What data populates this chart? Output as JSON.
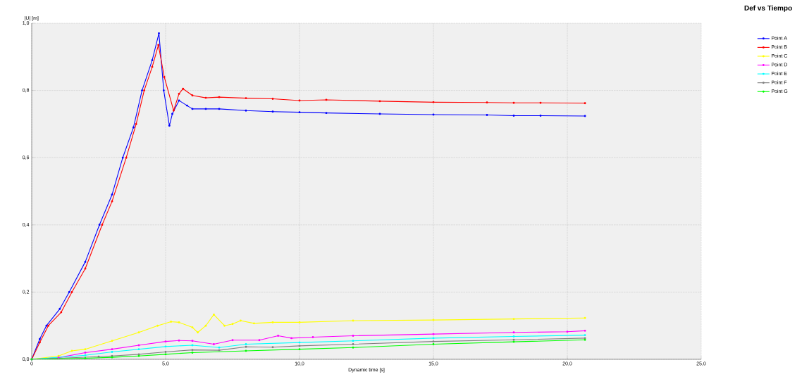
{
  "chart_data": {
    "type": "line",
    "legend_title": "Def vs Tiempo",
    "xlabel": "Dynamic time [s]",
    "ylabel": "|U| [m]",
    "xlim": [
      0,
      25
    ],
    "ylim": [
      0,
      1.0
    ],
    "xticks": [
      0,
      {
        "value": 5,
        "label": "5,0"
      },
      {
        "value": 10,
        "label": "10,0"
      },
      {
        "value": 15,
        "label": "15,0"
      },
      {
        "value": 20,
        "label": "20,0"
      },
      {
        "value": 25,
        "label": "25,0"
      }
    ],
    "yticks": [
      {
        "value": 0,
        "label": "0,0"
      },
      {
        "value": 0.2,
        "label": "0,2"
      },
      {
        "value": 0.4,
        "label": "0,4"
      },
      {
        "value": 0.6,
        "label": "0,6"
      },
      {
        "value": 0.8,
        "label": "0,8"
      },
      {
        "value": 1.0,
        "label": "1,0"
      }
    ],
    "grid": true,
    "legend": "right",
    "marker": "circle",
    "line_style": "solid",
    "series": [
      {
        "name": "Point A",
        "color": "#0000ff",
        "x": [
          0,
          0.3,
          0.55,
          1.05,
          1.4,
          2.0,
          2.53,
          3.0,
          3.4,
          3.8,
          4.12,
          4.5,
          4.75,
          4.93,
          5.14,
          5.25,
          5.5,
          5.8,
          6.0,
          6.5,
          7.0,
          8.0,
          9.0,
          10.0,
          11.0,
          13.0,
          15.0,
          17.0,
          18.0,
          19.0,
          20.66
        ],
        "values": [
          0,
          0.06,
          0.1,
          0.15,
          0.2,
          0.29,
          0.4,
          0.49,
          0.6,
          0.69,
          0.8,
          0.89,
          0.97,
          0.8,
          0.695,
          0.73,
          0.77,
          0.755,
          0.745,
          0.745,
          0.745,
          0.74,
          0.737,
          0.735,
          0.733,
          0.73,
          0.728,
          0.727,
          0.725,
          0.725,
          0.724
        ]
      },
      {
        "name": "Point B",
        "color": "#ff0000",
        "x": [
          0,
          0.3,
          0.62,
          1.1,
          1.5,
          2.0,
          2.63,
          3.0,
          3.53,
          3.9,
          4.2,
          4.5,
          4.73,
          4.95,
          5.3,
          5.5,
          5.65,
          6.0,
          6.5,
          7.0,
          8.0,
          9.0,
          10.0,
          11.0,
          13.0,
          15.0,
          17.0,
          18.0,
          19.0,
          20.66
        ],
        "values": [
          0,
          0.05,
          0.1,
          0.14,
          0.2,
          0.27,
          0.4,
          0.47,
          0.6,
          0.7,
          0.8,
          0.87,
          0.935,
          0.84,
          0.74,
          0.79,
          0.805,
          0.785,
          0.778,
          0.78,
          0.777,
          0.775,
          0.77,
          0.772,
          0.768,
          0.765,
          0.764,
          0.763,
          0.763,
          0.762
        ]
      },
      {
        "name": "Point C",
        "color": "#ffff00",
        "x": [
          0,
          1.0,
          1.5,
          2.0,
          3.0,
          4.0,
          4.7,
          5.2,
          5.5,
          6.0,
          6.2,
          6.5,
          6.8,
          7.2,
          7.5,
          7.8,
          8.3,
          9.0,
          10.0,
          12.0,
          15.0,
          18.0,
          20.66
        ],
        "values": [
          0,
          0.01,
          0.025,
          0.03,
          0.055,
          0.08,
          0.1,
          0.112,
          0.11,
          0.095,
          0.08,
          0.1,
          0.133,
          0.1,
          0.105,
          0.115,
          0.107,
          0.11,
          0.11,
          0.115,
          0.117,
          0.12,
          0.123
        ]
      },
      {
        "name": "Point D",
        "color": "#ff00ff",
        "x": [
          0,
          1.0,
          2.0,
          3.0,
          4.0,
          5.0,
          5.5,
          6.0,
          6.8,
          7.5,
          8.5,
          9.2,
          9.7,
          10.5,
          12.0,
          15.0,
          18.0,
          20.0,
          20.66
        ],
        "values": [
          0,
          0.005,
          0.02,
          0.03,
          0.042,
          0.053,
          0.056,
          0.055,
          0.045,
          0.057,
          0.057,
          0.07,
          0.063,
          0.066,
          0.07,
          0.075,
          0.08,
          0.082,
          0.085
        ]
      },
      {
        "name": "Point E",
        "color": "#00ffff",
        "x": [
          0,
          2.0,
          3.0,
          4.0,
          5.0,
          6.0,
          7.0,
          8.0,
          10.0,
          12.0,
          15.0,
          18.0,
          20.66
        ],
        "values": [
          0,
          0.012,
          0.022,
          0.03,
          0.038,
          0.042,
          0.035,
          0.045,
          0.05,
          0.055,
          0.063,
          0.068,
          0.072
        ]
      },
      {
        "name": "Point F",
        "color": "#808080",
        "x": [
          0,
          2.5,
          3.0,
          4.0,
          5.0,
          6.0,
          7.0,
          8.0,
          9.0,
          10.0,
          12.0,
          15.0,
          18.0,
          20.66
        ],
        "values": [
          0,
          0.008,
          0.01,
          0.015,
          0.022,
          0.028,
          0.027,
          0.037,
          0.036,
          0.04,
          0.045,
          0.053,
          0.058,
          0.063
        ]
      },
      {
        "name": "Point G",
        "color": "#00ff00",
        "x": [
          0,
          2.0,
          3.0,
          4.0,
          5.0,
          6.0,
          8.0,
          10.0,
          12.0,
          15.0,
          18.0,
          20.66
        ],
        "values": [
          0,
          0.003,
          0.006,
          0.01,
          0.015,
          0.02,
          0.025,
          0.03,
          0.035,
          0.045,
          0.052,
          0.058
        ]
      }
    ]
  }
}
